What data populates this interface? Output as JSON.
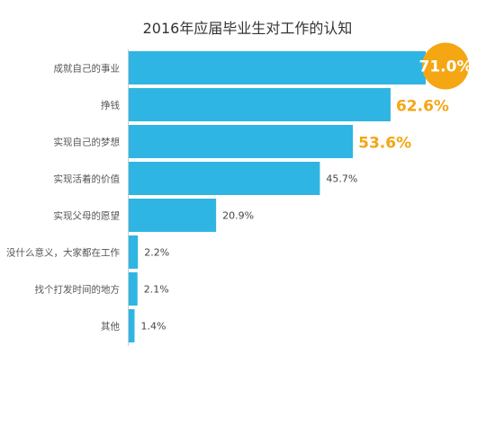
{
  "chart_data": {
    "type": "bar",
    "orientation": "horizontal",
    "title": "2016年应届毕业生对工作的认知",
    "categories": [
      "成就自己的事业",
      "挣钱",
      "实现自己的梦想",
      "实现活着的价值",
      "实现父母的愿望",
      "没什么意义，大家都在工作",
      "找个打发时间的地方",
      "其他"
    ],
    "values": [
      71.0,
      62.6,
      53.6,
      45.7,
      20.9,
      2.2,
      2.1,
      1.4
    ],
    "value_labels": [
      "71.0%",
      "62.6%",
      "53.6%",
      "45.7%",
      "20.9%",
      "2.2%",
      "2.1%",
      "1.4%"
    ],
    "xlim": [
      0,
      71.0
    ],
    "grid": false,
    "legend": "none",
    "highlight_count": 3
  },
  "colors": {
    "bar": "#2fb5e3",
    "highlight": "#f5a613",
    "label": "#555555",
    "value": "#444444",
    "axis": "#cccccc"
  }
}
